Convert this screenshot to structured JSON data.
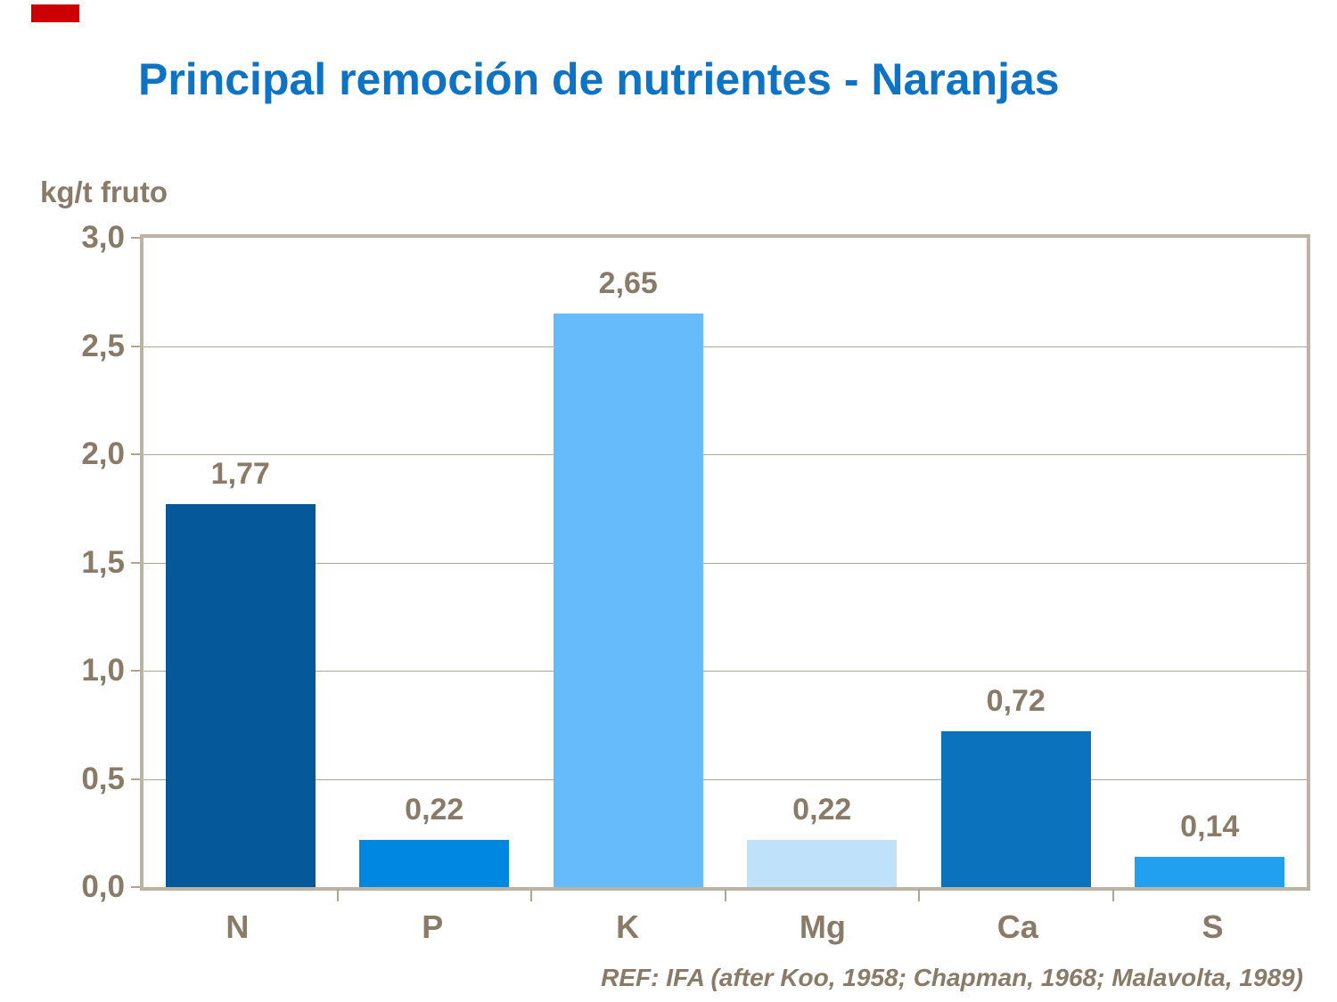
{
  "slide": {
    "title": "Principal remoción de nutrientes - Naranjas",
    "footer": "REF: IFA (after Koo, 1958; Chapman, 1968; Malavolta, 1989)",
    "title_color": "#0f73c4",
    "text_color": "#8a7a68",
    "accent_mark_color": "#cc0000"
  },
  "chart_data": {
    "type": "bar",
    "title": "Principal remoción de nutrientes - Naranjas",
    "ylabel": "kg/t fruto",
    "xlabel": "",
    "categories": [
      "N",
      "P",
      "K",
      "Mg",
      "Ca",
      "S"
    ],
    "values": [
      1.77,
      0.22,
      2.65,
      0.22,
      0.72,
      0.14
    ],
    "value_labels": [
      "1,77",
      "0,22",
      "2,65",
      "0,22",
      "0,72",
      "0,14"
    ],
    "bar_colors": [
      "#05599b",
      "#0087e1",
      "#66bcfa",
      "#bfe1f9",
      "#0b72be",
      "#21a0f0"
    ],
    "ylim": [
      0,
      3
    ],
    "ytick_step": 0.5,
    "ytick_labels": [
      "0,0",
      "0,5",
      "1,0",
      "1,5",
      "2,0",
      "2,5",
      "3,0"
    ],
    "grid": true,
    "legend": "none",
    "plot_border_color": "#bdb3a4",
    "gridline_color": "#b0a494"
  }
}
